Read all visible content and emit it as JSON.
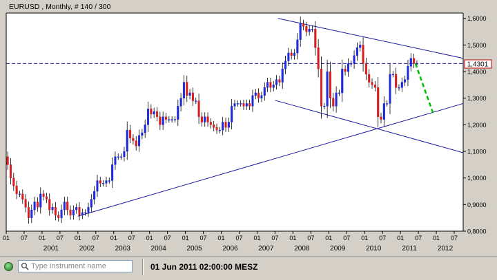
{
  "instrument_label": "EURUSD , Monthly, # 140 / 300",
  "current_price_label": "1,4301",
  "status_time": "01 Jun 2011 02:00:00 MESZ",
  "search": {
    "placeholder": "Type instrument name"
  },
  "colors": {
    "up": "#1f2ad8",
    "down": "#d81f1f",
    "trend": "#1a1aa0",
    "projection": "#00c000"
  },
  "icons": {
    "status": "green-status-led",
    "search": "magnifier-icon"
  },
  "chart_data": {
    "type": "candlestick",
    "title": "EURUSD , Monthly, # 140 / 300",
    "ylim": [
      0.8,
      1.62
    ],
    "yticks": [
      0.8,
      0.9,
      1.0,
      1.1,
      1.2,
      1.3,
      1.4,
      1.5,
      1.6
    ],
    "ytick_labels": [
      "0,8000",
      "0,9000",
      "1,0000",
      "1,1000",
      "1,2000",
      "1,3000",
      "1,4000",
      "1,5000",
      "1,6000"
    ],
    "xlim": [
      2000.0,
      2012.75
    ],
    "month_ticks": [
      "01",
      "07",
      "01",
      "07",
      "01",
      "07",
      "01",
      "07",
      "01",
      "07",
      "01",
      "07",
      "01",
      "07",
      "01",
      "07",
      "01",
      "07",
      "01",
      "07",
      "01",
      "07",
      "01",
      "07",
      "01",
      "07"
    ],
    "years": [
      "2001",
      "2002",
      "2003",
      "2004",
      "2005",
      "2006",
      "2007",
      "2008",
      "2009",
      "2010",
      "2011",
      "2012"
    ],
    "current_price": 1.4301,
    "grid": false,
    "closes": [
      1.05,
      1.0,
      0.97,
      0.94,
      0.94,
      0.92,
      0.89,
      0.85,
      0.88,
      0.91,
      0.89,
      0.94,
      0.93,
      0.92,
      0.88,
      0.89,
      0.86,
      0.85,
      0.88,
      0.91,
      0.88,
      0.86,
      0.88,
      0.89,
      0.86,
      0.87,
      0.87,
      0.89,
      0.92,
      0.95,
      0.99,
      0.98,
      0.98,
      0.99,
      0.99,
      1.05,
      1.08,
      1.08,
      1.08,
      1.1,
      1.18,
      1.15,
      1.14,
      1.12,
      1.16,
      1.17,
      1.2,
      1.26,
      1.24,
      1.25,
      1.23,
      1.2,
      1.23,
      1.22,
      1.22,
      1.22,
      1.22,
      1.27,
      1.3,
      1.36,
      1.31,
      1.32,
      1.29,
      1.29,
      1.23,
      1.21,
      1.23,
      1.21,
      1.2,
      1.19,
      1.18,
      1.18,
      1.21,
      1.19,
      1.21,
      1.27,
      1.28,
      1.28,
      1.28,
      1.27,
      1.28,
      1.27,
      1.31,
      1.32,
      1.3,
      1.31,
      1.34,
      1.36,
      1.34,
      1.35,
      1.37,
      1.36,
      1.41,
      1.44,
      1.47,
      1.46,
      1.47,
      1.52,
      1.58,
      1.57,
      1.55,
      1.56,
      1.56,
      1.49,
      1.41,
      1.27,
      1.27,
      1.4,
      1.3,
      1.27,
      1.32,
      1.32,
      1.41,
      1.4,
      1.43,
      1.43,
      1.46,
      1.49,
      1.5,
      1.43,
      1.39,
      1.36,
      1.35,
      1.34,
      1.23,
      1.22,
      1.28,
      1.28,
      1.39,
      1.39,
      1.34,
      1.34,
      1.36,
      1.37,
      1.42,
      1.45,
      1.43,
      1.43
    ],
    "trendlines": [
      {
        "name": "upper-channel",
        "points": [
          [
            2007.583,
            1.6
          ],
          [
            2012.75,
            1.45
          ]
        ]
      },
      {
        "name": "lower-channel",
        "points": [
          [
            2007.5,
            1.292
          ],
          [
            2012.75,
            1.095
          ]
        ]
      },
      {
        "name": "support",
        "points": [
          [
            2002.0,
            0.856
          ],
          [
            2012.75,
            1.28
          ]
        ]
      }
    ],
    "projection": {
      "points": [
        [
          2011.42,
          1.43
        ],
        [
          2011.92,
          1.24
        ]
      ]
    }
  }
}
